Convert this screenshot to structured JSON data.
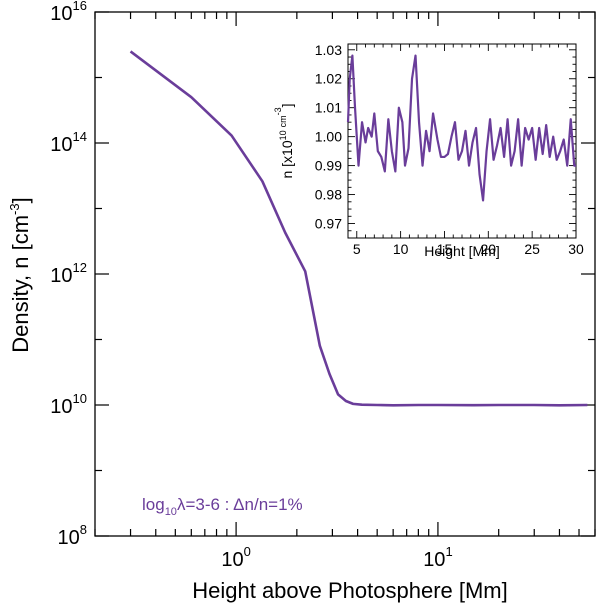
{
  "chart_data": [
    {
      "type": "line",
      "xscale": "log",
      "yscale": "log",
      "xlabel": "Height above Photosphere [Mm]",
      "ylabel": "Density, n [cm",
      "ylabel_sup": "-3",
      "ylabel_end": "]",
      "xlim": [
        0.2,
        60
      ],
      "ylim": [
        100000000.0,
        1e+16
      ],
      "x_ticks": [
        {
          "value": 1,
          "base": "10",
          "exp": "0"
        },
        {
          "value": 10,
          "base": "10",
          "exp": "1"
        }
      ],
      "y_ticks": [
        {
          "value": 100000000.0,
          "base": "10",
          "exp": "8"
        },
        {
          "value": 10000000000.0,
          "base": "10",
          "exp": "10"
        },
        {
          "value": 1000000000000.0,
          "base": "10",
          "exp": "12"
        },
        {
          "value": 100000000000000.0,
          "base": "10",
          "exp": "14"
        },
        {
          "value": 1e+16,
          "base": "10",
          "exp": "16"
        }
      ],
      "annotation": {
        "text_a": "log",
        "sub": "10",
        "text_b": "λ=3-6 : Δn/n=1%"
      },
      "line_color": "#6a3d9a",
      "series": [
        {
          "x": [
            0.3,
            0.6,
            0.95,
            1.35,
            1.75,
            2.2,
            2.6,
            2.9,
            3.2,
            3.5,
            3.8,
            4.2,
            5,
            6,
            8,
            10,
            15,
            20,
            30,
            40,
            55
          ],
          "y": [
            2500000000000000.0,
            500000000000000.0,
            130000000000000.0,
            26000000000000.0,
            4300000000000.0,
            1100000000000.0,
            80000000000.0,
            30000000000.0,
            14500000000.0,
            11500000000.0,
            10400000000.0,
            10100000000.0,
            10000000000.0,
            9900000000.0,
            10000000000.0,
            10000000000.0,
            9950000000.0,
            10000000000.0,
            10000000000.0,
            9900000000.0,
            10000000000.0
          ]
        }
      ]
    },
    {
      "type": "line",
      "xlabel": "Height [Mm]",
      "ylabel": "n [x10",
      "ylabel_sup": "10",
      "ylabel_unit": "cm",
      "ylabel_unit_sup": "-3",
      "ylabel_end": "]",
      "xlim": [
        4,
        30
      ],
      "ylim": [
        0.965,
        1.032
      ],
      "x_ticks": [
        5,
        10,
        15,
        20,
        25,
        30
      ],
      "y_ticks": [
        "0.97",
        "0.98",
        "0.99",
        "1.00",
        "1.01",
        "1.02",
        "1.03"
      ],
      "y_tick_values": [
        0.97,
        0.98,
        0.99,
        1.0,
        1.01,
        1.02,
        1.03
      ],
      "line_color": "#6a3d9a",
      "series": [
        {
          "x": [
            4,
            4.2,
            4.5,
            4.8,
            5.2,
            5.6,
            6.0,
            6.3,
            6.7,
            7.0,
            7.4,
            7.8,
            8.2,
            8.6,
            9.0,
            9.4,
            9.8,
            10.2,
            10.5,
            10.9,
            11.3,
            11.7,
            12.1,
            12.5,
            12.9,
            13.3,
            13.7,
            14.2,
            14.6,
            15.0,
            15.4,
            15.8,
            16.2,
            16.6,
            17.0,
            17.4,
            17.8,
            18.2,
            18.6,
            19.0,
            19.4,
            19.8,
            20.2,
            20.6,
            21.0,
            21.4,
            21.8,
            22.2,
            22.6,
            23.0,
            23.4,
            23.8,
            24.2,
            24.6,
            25.0,
            25.4,
            25.8,
            26.2,
            26.6,
            27.0,
            27.4,
            27.8,
            28.2,
            28.6,
            29.0,
            29.4,
            29.8,
            30
          ],
          "y": [
            1.005,
            1.02,
            1.028,
            1.01,
            0.99,
            1.005,
            0.998,
            1.003,
            1.0,
            1.008,
            0.995,
            0.993,
            0.988,
            1.006,
            0.995,
            0.988,
            1.01,
            1.005,
            0.99,
            0.996,
            1.02,
            1.028,
            1.005,
            0.99,
            1.002,
            0.995,
            1.008,
            0.999,
            0.993,
            0.993,
            0.994,
            1.0,
            1.005,
            0.992,
            0.995,
            1.002,
            0.99,
            0.998,
            1.003,
            0.987,
            0.978,
            0.995,
            1.006,
            0.992,
            0.997,
            1.003,
            0.993,
            1.006,
            0.99,
            0.995,
            1.006,
            0.99,
            1.003,
            0.999,
            1.003,
            0.992,
            1.003,
            0.994,
            1.004,
            0.993,
            1.0,
            0.992,
            0.995,
            0.999,
            0.99,
            1.006,
            0.99,
            0.99
          ]
        }
      ]
    }
  ]
}
